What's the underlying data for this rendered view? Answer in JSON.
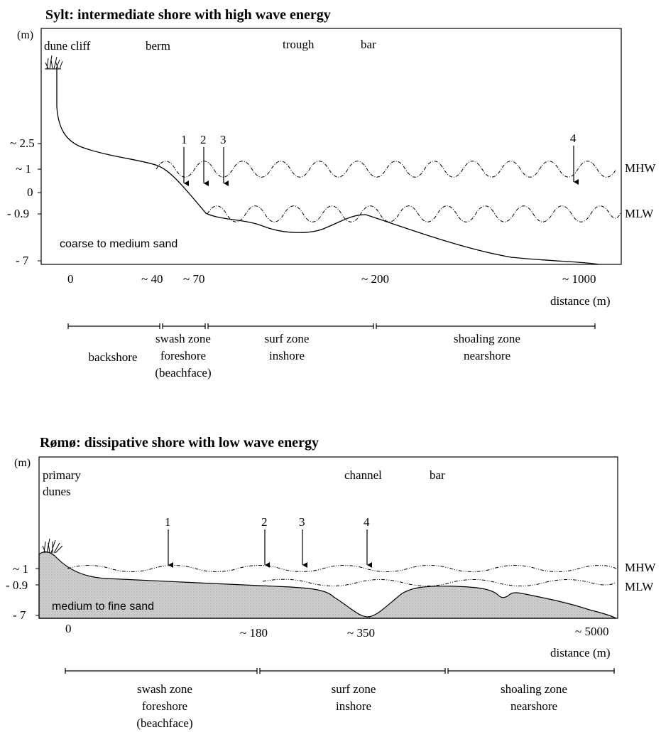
{
  "sylt": {
    "title": "Sylt: intermediate shore with high wave energy",
    "unit": "(m)",
    "features": {
      "dune_cliff": "dune cliff",
      "berm": "berm",
      "trough": "trough",
      "bar": "bar"
    },
    "y_ticks": [
      "~ 2.5",
      "~ 1",
      "0",
      "- 0.9",
      "- 7"
    ],
    "x_ticks": [
      "0",
      "~ 40",
      "~ 70",
      "~ 200",
      "~ 1000"
    ],
    "x_axis_label": "distance (m)",
    "water_levels": {
      "high": "MHW",
      "low": "MLW"
    },
    "sediment": "coarse to medium sand",
    "markers": [
      "1",
      "2",
      "3",
      "4"
    ],
    "zones": [
      {
        "line1": "backshore",
        "line2": "",
        "line3": ""
      },
      {
        "line1": "swash zone",
        "line2": "foreshore",
        "line3": "(beachface)"
      },
      {
        "line1": "surf zone",
        "line2": "inshore",
        "line3": ""
      },
      {
        "line1": "shoaling zone",
        "line2": "nearshore",
        "line3": ""
      }
    ]
  },
  "romo": {
    "title": "Rømø: dissipative shore with low wave energy",
    "unit": "(m)",
    "features": {
      "primary_dunes_1": "primary",
      "primary_dunes_2": "dunes",
      "channel": "channel",
      "bar": "bar"
    },
    "y_ticks": [
      "~ 1",
      "- 0.9",
      "- 7"
    ],
    "x_ticks": [
      "0",
      "~ 180",
      "~ 350",
      "~ 5000"
    ],
    "x_axis_label": "distance (m)",
    "water_levels": {
      "high": "MHW",
      "low": "MLW"
    },
    "sediment": "medium to fine sand",
    "markers": [
      "1",
      "2",
      "3",
      "4"
    ],
    "zones": [
      {
        "line1": "swash zone",
        "line2": "foreshore",
        "line3": "(beachface)"
      },
      {
        "line1": "surf zone",
        "line2": "inshore",
        "line3": ""
      },
      {
        "line1": "shoaling zone",
        "line2": "nearshore",
        "line3": ""
      }
    ]
  },
  "colors": {
    "ink": "#000000",
    "sand_fill": "#c9c9c9"
  }
}
